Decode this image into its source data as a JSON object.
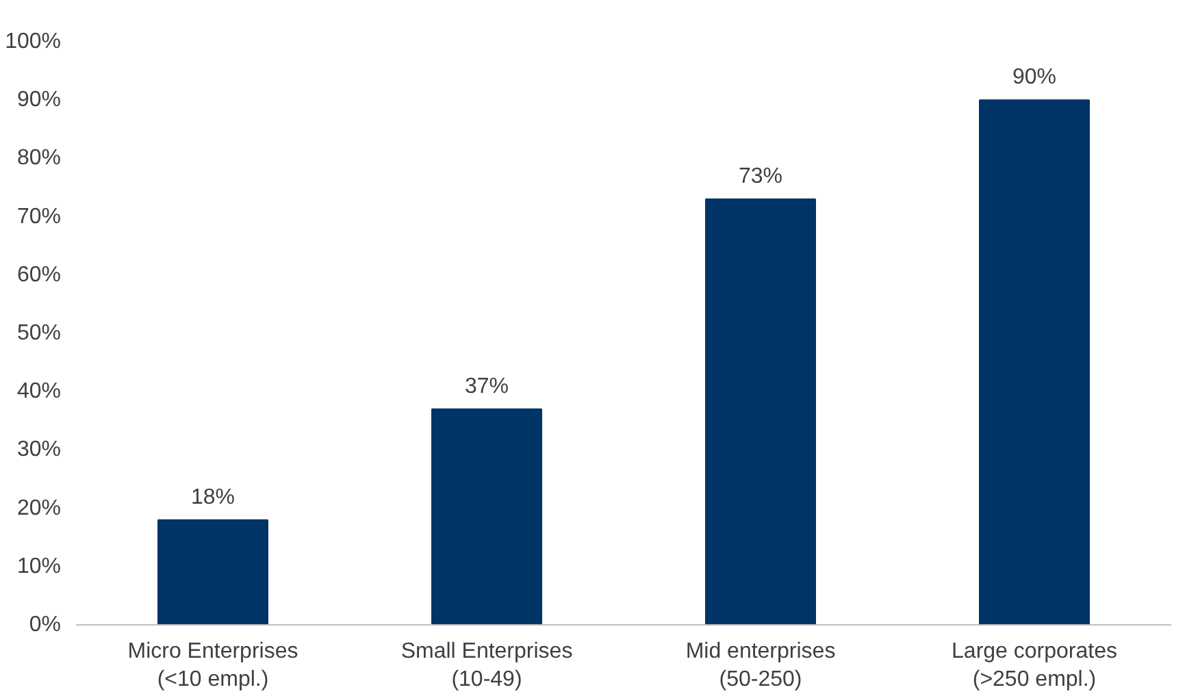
{
  "chart_data": {
    "type": "bar",
    "categories": [
      "Micro Enterprises\n(<10 empl.)",
      "Small Enterprises\n(10-49)",
      "Mid enterprises\n(50-250)",
      "Large corporates\n(>250 empl.)"
    ],
    "values": [
      18,
      37,
      73,
      90
    ],
    "color": "#003366",
    "value_labels": [
      "18%",
      "37%",
      "73%",
      "90%"
    ],
    "ylim": [
      0,
      100
    ],
    "yticks": [
      {
        "value": 0,
        "label": "0%"
      },
      {
        "value": 10,
        "label": "10%"
      },
      {
        "value": 20,
        "label": "20%"
      },
      {
        "value": 30,
        "label": "30%"
      },
      {
        "value": 40,
        "label": "40%"
      },
      {
        "value": 50,
        "label": "50%"
      },
      {
        "value": 60,
        "label": "60%"
      },
      {
        "value": 70,
        "label": "70%"
      },
      {
        "value": 80,
        "label": "80%"
      },
      {
        "value": 90,
        "label": "90%"
      },
      {
        "value": 100,
        "label": "100%"
      }
    ],
    "grid": false
  }
}
